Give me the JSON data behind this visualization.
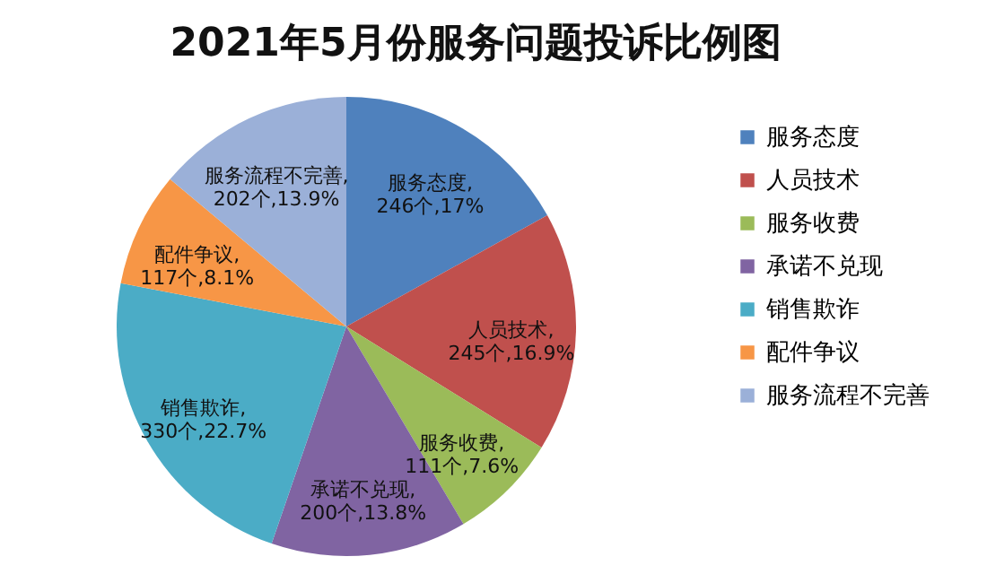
{
  "chart_data": {
    "type": "pie",
    "title": "2021年5月份服务问题投诉比例图",
    "categories": [
      "服务态度",
      "人员技术",
      "服务收费",
      "承诺不兑现",
      "销售欺诈",
      "配件争议",
      "服务流程不完善"
    ],
    "values": [
      246,
      245,
      111,
      200,
      330,
      117,
      202
    ],
    "colors": [
      "#4f81bd",
      "#c0504d",
      "#9bbb59",
      "#8064a2",
      "#4bacc6",
      "#f79646",
      "#9bb0d8"
    ],
    "value_labels": [
      "服务态度,\n246个,17%",
      "人员技术,\n245个,16.9%",
      "服务收费,\n111个,7.6%",
      "承诺不兑现,\n200个,13.8%",
      "销售欺诈,\n330个,22.7%",
      "配件争议,\n117个,8.1%",
      "服务流程不完善,\n202个,13.9%"
    ],
    "legend": "right"
  }
}
